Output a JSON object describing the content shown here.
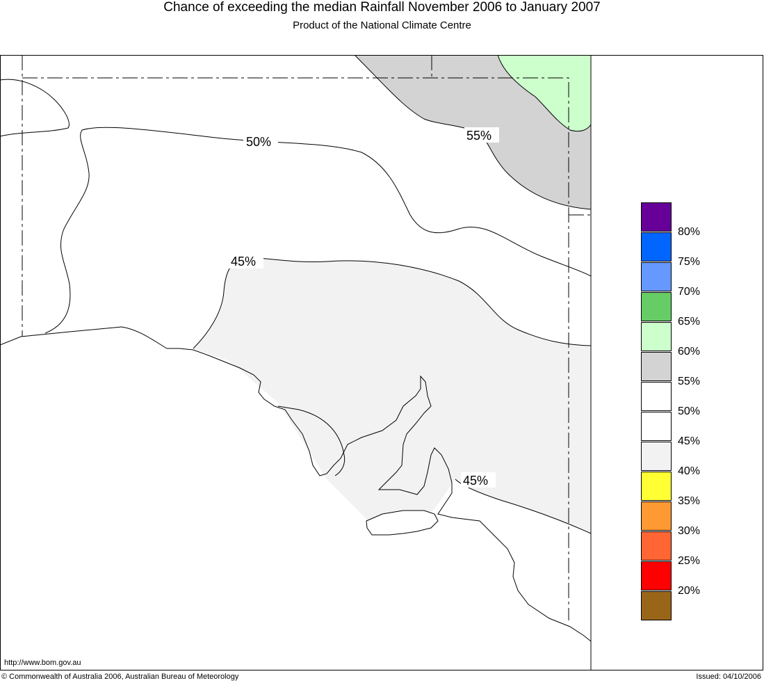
{
  "header": {
    "title": "Chance of exceeding the median Rainfall November 2006 to January 2007",
    "subtitle": "Product of the National Climate Centre"
  },
  "map": {
    "region": "South Australia",
    "contour_labels": [
      "50%",
      "55%",
      "45%",
      "45%"
    ],
    "colors": {
      "gray_55_60": "#d3d3d3",
      "green_60_65": "#ccffcc",
      "lightgray_40_45": "#f2f2f2",
      "line": "#000000"
    }
  },
  "legend": {
    "entries": [
      {
        "color": "#660099",
        "label": "80%"
      },
      {
        "color": "#0066ff",
        "label": "75%"
      },
      {
        "color": "#6699ff",
        "label": "70%"
      },
      {
        "color": "#66cc66",
        "label": "65%"
      },
      {
        "color": "#ccffcc",
        "label": "60%"
      },
      {
        "color": "#d3d3d3",
        "label": "55%"
      },
      {
        "color": "#ffffff",
        "label": "50%"
      },
      {
        "color": "#ffffff",
        "label": "45%"
      },
      {
        "color": "#f2f2f2",
        "label": "40%"
      },
      {
        "color": "#ffff33",
        "label": "35%"
      },
      {
        "color": "#ff9933",
        "label": "30%"
      },
      {
        "color": "#ff6633",
        "label": "25%"
      },
      {
        "color": "#ff0000",
        "label": "20%"
      },
      {
        "color": "#996619",
        "label": ""
      }
    ]
  },
  "footer": {
    "url": "http://www.bom.gov.au",
    "copyright": "© Commonwealth of Australia 2006, Australian Bureau of Meteorology",
    "issued": "Issued: 04/10/2006"
  }
}
